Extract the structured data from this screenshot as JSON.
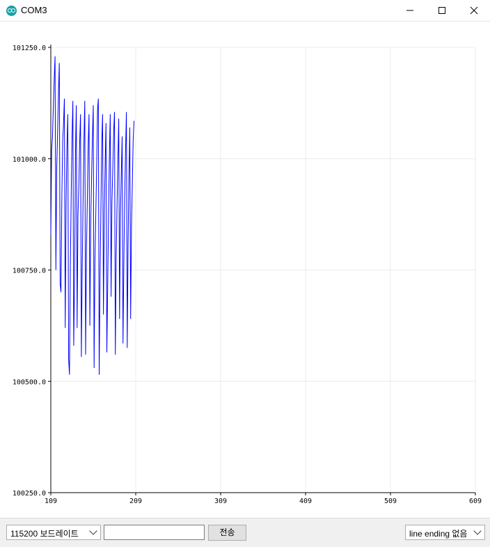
{
  "window": {
    "title": "COM3",
    "icon": "arduino-icon"
  },
  "controls": {
    "minimize_icon": "minimize-icon",
    "maximize_icon": "maximize-icon",
    "close_icon": "close-icon"
  },
  "chart_data": {
    "type": "line",
    "title": "",
    "xlabel": "",
    "ylabel": "",
    "xlim": [
      109,
      609
    ],
    "ylim": [
      100250.0,
      101250.0
    ],
    "x_ticks": [
      "109",
      "209",
      "309",
      "409",
      "509",
      "609"
    ],
    "y_ticks": [
      "101250.0",
      "101000.0",
      "100750.0",
      "100500.0",
      "100250.0"
    ],
    "grid": true,
    "series": [
      {
        "color": "#0000ff",
        "points": [
          [
            109,
            100830
          ],
          [
            110,
            101020
          ],
          [
            111,
            101050
          ],
          [
            112,
            101120
          ],
          [
            113,
            101180
          ],
          [
            114,
            101230
          ],
          [
            115,
            100750
          ],
          [
            116,
            100980
          ],
          [
            117,
            101060
          ],
          [
            118,
            101150
          ],
          [
            119,
            101215
          ],
          [
            120,
            100720
          ],
          [
            121,
            100700
          ],
          [
            122,
            100920
          ],
          [
            123,
            101040
          ],
          [
            124,
            101080
          ],
          [
            125,
            101135
          ],
          [
            126,
            100620
          ],
          [
            127,
            100900
          ],
          [
            128,
            101030
          ],
          [
            129,
            101100
          ],
          [
            130,
            100550
          ],
          [
            131,
            100515
          ],
          [
            132,
            100760
          ],
          [
            133,
            100920
          ],
          [
            134,
            101050
          ],
          [
            135,
            101130
          ],
          [
            136,
            100580
          ],
          [
            137,
            100740
          ],
          [
            138,
            101010
          ],
          [
            139,
            101120
          ],
          [
            140,
            100620
          ],
          [
            141,
            100870
          ],
          [
            142,
            100940
          ],
          [
            143,
            101040
          ],
          [
            144,
            101100
          ],
          [
            145,
            100555
          ],
          [
            146,
            100750
          ],
          [
            147,
            100910
          ],
          [
            148,
            101040
          ],
          [
            149,
            101130
          ],
          [
            150,
            100560
          ],
          [
            151,
            100790
          ],
          [
            152,
            100910
          ],
          [
            153,
            101030
          ],
          [
            154,
            101100
          ],
          [
            155,
            100625
          ],
          [
            156,
            100850
          ],
          [
            157,
            100960
          ],
          [
            158,
            101050
          ],
          [
            159,
            101120
          ],
          [
            160,
            100530
          ],
          [
            161,
            100770
          ],
          [
            162,
            100880
          ],
          [
            163,
            100985
          ],
          [
            164,
            101110
          ],
          [
            165,
            101135
          ],
          [
            166,
            100515
          ],
          [
            167,
            100740
          ],
          [
            168,
            100890
          ],
          [
            169,
            101035
          ],
          [
            170,
            101100
          ],
          [
            171,
            100650
          ],
          [
            172,
            100880
          ],
          [
            173,
            100990
          ],
          [
            174,
            101080
          ],
          [
            175,
            100565
          ],
          [
            176,
            100710
          ],
          [
            177,
            100880
          ],
          [
            178,
            101010
          ],
          [
            179,
            101100
          ],
          [
            180,
            100690
          ],
          [
            181,
            100900
          ],
          [
            182,
            100980
          ],
          [
            183,
            101060
          ],
          [
            184,
            101105
          ],
          [
            185,
            100560
          ],
          [
            186,
            100780
          ],
          [
            187,
            100900
          ],
          [
            188,
            101000
          ],
          [
            189,
            101090
          ],
          [
            190,
            100640
          ],
          [
            191,
            100870
          ],
          [
            192,
            100970
          ],
          [
            193,
            101050
          ],
          [
            194,
            100585
          ],
          [
            195,
            100760
          ],
          [
            196,
            100910
          ],
          [
            197,
            101020
          ],
          [
            198,
            101105
          ],
          [
            199,
            100575
          ],
          [
            200,
            100800
          ],
          [
            201,
            100960
          ],
          [
            202,
            101070
          ],
          [
            203,
            100640
          ],
          [
            204,
            100850
          ],
          [
            205,
            100940
          ],
          [
            206,
            101040
          ],
          [
            207,
            101085
          ]
        ]
      }
    ]
  },
  "footer": {
    "baud_label": "115200 보드레이트",
    "send_label": "전송",
    "line_ending_label": "line ending 없음",
    "input_value": ""
  }
}
